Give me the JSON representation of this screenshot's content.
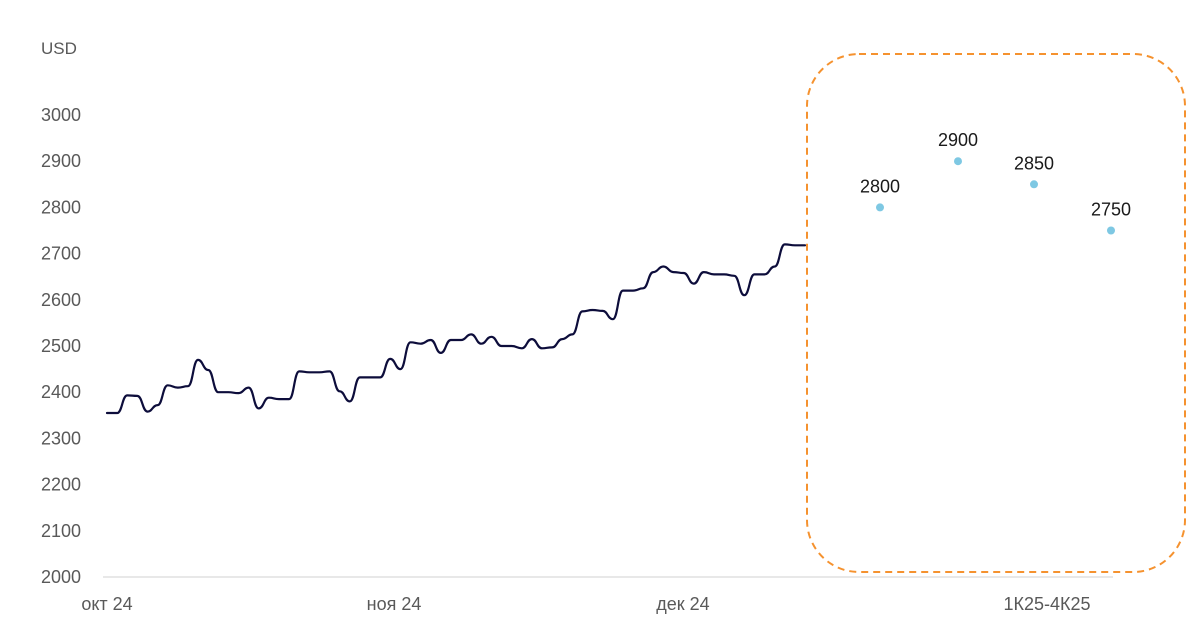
{
  "chart_data": {
    "type": "line",
    "ylabel": "USD",
    "ylim": [
      2000,
      3000
    ],
    "yticks": [
      2000,
      2100,
      2200,
      2300,
      2400,
      2500,
      2600,
      2700,
      2800,
      2900,
      3000
    ],
    "xtick_labels": [
      "окт 24",
      "ноя 24",
      "дек 24",
      "1К25-4К25"
    ],
    "grid": false,
    "series": [
      {
        "type": "line",
        "color": "#0d0d3b",
        "x": [
          "2024-10-01",
          "2024-10-02",
          "2024-10-03",
          "2024-10-04",
          "2024-10-07",
          "2024-10-08",
          "2024-10-09",
          "2024-10-10",
          "2024-10-11",
          "2024-10-14",
          "2024-10-15",
          "2024-10-16",
          "2024-10-17",
          "2024-10-18",
          "2024-10-21",
          "2024-10-22",
          "2024-10-23",
          "2024-10-24",
          "2024-10-25",
          "2024-10-28",
          "2024-10-29",
          "2024-10-30",
          "2024-10-31",
          "2024-11-01",
          "2024-11-04",
          "2024-11-05",
          "2024-11-06",
          "2024-11-07",
          "2024-11-08",
          "2024-11-11",
          "2024-11-12",
          "2024-11-13",
          "2024-11-14",
          "2024-11-15",
          "2024-11-18",
          "2024-11-19",
          "2024-11-20",
          "2024-11-21",
          "2024-11-22",
          "2024-11-25",
          "2024-11-26",
          "2024-11-27",
          "2024-11-28",
          "2024-11-29",
          "2024-12-02",
          "2024-12-03",
          "2024-12-04",
          "2024-12-05",
          "2024-12-06",
          "2024-12-09",
          "2024-12-10",
          "2024-12-11",
          "2024-12-12",
          "2024-12-13",
          "2024-12-16",
          "2024-12-17",
          "2024-12-18",
          "2024-12-19",
          "2024-12-20",
          "2024-12-23",
          "2024-12-24",
          "2024-12-25",
          "2024-12-26",
          "2024-12-27",
          "2024-12-30",
          "2024-12-31"
        ],
        "values": [
          2355,
          2355,
          2393,
          2392,
          2358,
          2372,
          2415,
          2410,
          2413,
          2470,
          2448,
          2400,
          2400,
          2398,
          2410,
          2365,
          2388,
          2385,
          2385,
          2445,
          2443,
          2443,
          2445,
          2402,
          2380,
          2432,
          2432,
          2432,
          2472,
          2450,
          2508,
          2505,
          2513,
          2485,
          2513,
          2513,
          2525,
          2505,
          2520,
          2500,
          2500,
          2495,
          2515,
          2495,
          2497,
          2515,
          2525,
          2575,
          2578,
          2576,
          2558,
          2620,
          2620,
          2625,
          2660,
          2672,
          2660,
          2658,
          2635,
          2660,
          2655,
          2655,
          2652,
          2610,
          2655,
          2655
        ]
      },
      {
        "type": "scatter",
        "color": "#7ec8e3",
        "x": [
          "1К25",
          "2К25",
          "3К25",
          "4К25"
        ],
        "values": [
          2800,
          2900,
          2850,
          2750
        ],
        "data_labels": [
          "2800",
          "2900",
          "2850",
          "2750"
        ]
      }
    ],
    "annotations": [
      {
        "type": "dashed-rounded-box",
        "color": "#f5922f",
        "encloses": "1К25-4К25 forecast points"
      }
    ],
    "extra_line_points": [
      2672,
      2720,
      2718,
      2718
    ]
  }
}
